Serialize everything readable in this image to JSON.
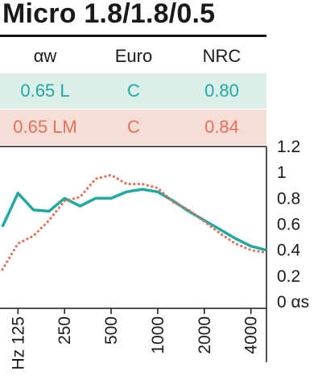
{
  "title": "Micro 1.8/1.8/0.5",
  "table": {
    "headers": [
      "αw",
      "Euro",
      "NRC"
    ],
    "rows": [
      {
        "cells": [
          "0.65 L",
          "C",
          "0.80"
        ],
        "color": "#1fa9a1",
        "background": "#dbeeea"
      },
      {
        "cells": [
          "0.65 LM",
          "C",
          "0.84"
        ],
        "color": "#e56f5a",
        "background": "#f6ddd5"
      }
    ]
  },
  "chart_data": {
    "type": "line",
    "x": [
      100,
      125,
      160,
      200,
      250,
      315,
      400,
      500,
      630,
      800,
      1000,
      1250,
      1600,
      2000,
      2500,
      3150,
      4000,
      5000
    ],
    "x_tick_labels": [
      "Hz 125",
      "250",
      "500",
      "1000",
      "2000",
      "4000"
    ],
    "y_tick_labels": [
      "1.2",
      "1",
      "0.8",
      "0.6",
      "0.4",
      "0.2",
      "0 αs"
    ],
    "ylim": [
      0,
      1.2
    ],
    "grid": false,
    "series": [
      {
        "color": "#1fa9a1",
        "style": "solid",
        "values": [
          0.58,
          0.84,
          0.71,
          0.7,
          0.8,
          0.74,
          0.8,
          0.8,
          0.85,
          0.87,
          0.85,
          0.78,
          0.7,
          0.63,
          0.56,
          0.49,
          0.43,
          0.4
        ]
      },
      {
        "color": "#e56f5a",
        "style": "dotted",
        "values": [
          0.25,
          0.45,
          0.51,
          0.63,
          0.78,
          0.81,
          0.95,
          0.98,
          0.91,
          0.91,
          0.88,
          0.77,
          0.71,
          0.62,
          0.53,
          0.45,
          0.4,
          0.38
        ]
      }
    ]
  }
}
